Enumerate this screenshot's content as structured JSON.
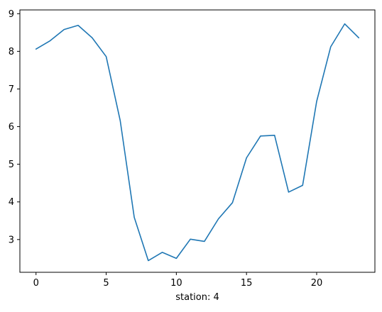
{
  "chart_data": {
    "type": "line",
    "title": "",
    "xlabel": "station: 4",
    "ylabel": "",
    "xlim": [
      -1.15,
      24.15
    ],
    "ylim": [
      2.13,
      9.1
    ],
    "grid": false,
    "x_ticks": [
      0,
      5,
      10,
      15,
      20
    ],
    "y_ticks": [
      3,
      4,
      5,
      6,
      7,
      8,
      9
    ],
    "series": [
      {
        "color": "#1f77b4",
        "x": [
          0,
          1,
          2,
          3,
          4,
          5,
          6,
          7,
          8,
          9,
          10,
          11,
          12,
          13,
          14,
          15,
          16,
          17,
          18,
          19,
          20,
          21,
          22,
          23
        ],
        "y": [
          8.06,
          8.28,
          8.58,
          8.69,
          8.36,
          7.86,
          6.16,
          3.59,
          2.44,
          2.66,
          2.5,
          3.01,
          2.95,
          3.55,
          3.98,
          5.17,
          5.75,
          5.77,
          4.26,
          4.44,
          6.67,
          8.12,
          8.73,
          8.36
        ]
      }
    ]
  }
}
